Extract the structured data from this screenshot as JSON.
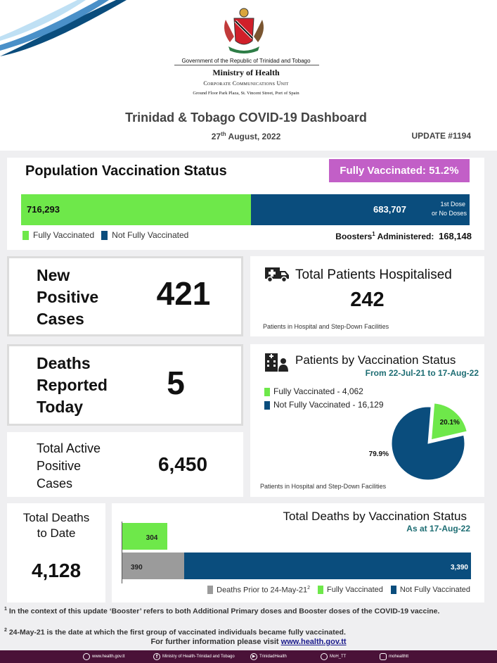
{
  "header": {
    "gov_line": "Government of the Republic of Trinidad and Tobago",
    "ministry": "Ministry of Health",
    "unit": "Corporate Communications Unit",
    "address": "Ground Floor Park Plaza, St. Vincent Street, Port of Spain",
    "title": "Trinidad & Tobago COVID-19 Dashboard",
    "date_day": "27",
    "date_sup": "th",
    "date_rest": "August, 2022",
    "update": "UPDATE #1194"
  },
  "vaccination": {
    "title": "Population Vaccination Status",
    "badge": "Fully Vaccinated: 51.2%",
    "fully_value": "716,293",
    "not_fully_value": "683,707",
    "not_fully_note_1": "1st Dose",
    "not_fully_note_2": "or No Doses",
    "fully_fraction": 0.512,
    "legend_fully": "Fully Vaccinated",
    "legend_not_fully": "Not Fully Vaccinated",
    "boosters_label": "Boosters",
    "boosters_sup": "1",
    "boosters_label_2": " Administered:",
    "boosters_value": "168,148"
  },
  "new_cases": {
    "label_1": "New",
    "label_2": "Positive",
    "label_3": "Cases",
    "value": "421"
  },
  "hospitalised": {
    "title": "Total Patients Hospitalised",
    "value": "242",
    "note": "Patients in Hospital and Step-Down Facilities"
  },
  "deaths_today": {
    "label_1": "Deaths",
    "label_2": "Reported",
    "label_3": "Today",
    "value": "5"
  },
  "active_cases": {
    "label_1": "Total Active",
    "label_2": "Positive",
    "label_3": "Cases",
    "value": "6,450"
  },
  "patients_vax": {
    "title": "Patients by Vaccination Status",
    "subtitle": "From 22-Jul-21 to 17-Aug-22",
    "legend_fully": "Fully Vaccinated - 4,062",
    "legend_not_fully": "Not Fully Vaccinated - 16,129",
    "note": "Patients in Hospital and Step-Down Facilities"
  },
  "total_deaths": {
    "label_1": "Total Deaths",
    "label_2": "to Date",
    "value": "4,128"
  },
  "deaths_vax": {
    "title": "Total Deaths by Vaccination Status",
    "subtitle": "As at 17-Aug-22",
    "legend_prior_text": "Deaths Prior to 24-May-21",
    "legend_prior_sup": "2",
    "legend_fully": "Fully Vaccinated",
    "legend_not_fully": "Not Fully Vaccinated"
  },
  "chart_data": [
    {
      "type": "pie",
      "labels": [
        "Fully Vaccinated",
        "Not Fully Vaccinated"
      ],
      "values": [
        20.1,
        79.9
      ],
      "value_labels": [
        "20.1%",
        "79.9%"
      ],
      "colors": [
        "#6ee84a",
        "#0a4d7d"
      ]
    },
    {
      "type": "bar",
      "orientation": "horizontal",
      "series": [
        {
          "name": "Fully Vaccinated",
          "values": [
            304
          ],
          "labels": [
            "304"
          ],
          "color": "#6ee84a"
        },
        {
          "name": "Deaths Prior to 24-May-21",
          "values": [
            390
          ],
          "labels": [
            "390"
          ],
          "color": "#9b9b9b"
        },
        {
          "name": "Not Fully Vaccinated",
          "values": [
            3390
          ],
          "labels": [
            "3,390"
          ],
          "color": "#0a4d7d"
        }
      ],
      "xlim": [
        0,
        3390
      ]
    }
  ],
  "footnotes": {
    "fn1_sup": "1",
    "fn1": " In the context of this update ‘Booster’ refers to both Additional Primary doses and Booster doses of the COVID-19 vaccine.",
    "fn2_sup": "2",
    "fn2": " 24-May-21 is the date at which the first group of vaccinated individuals became fully vaccinated.",
    "more_info": "For further information please visit ",
    "url": "www.health.gov.tt"
  },
  "footer": {
    "website": "www.health.gov.tt",
    "facebook": "Ministry of Health-Trinidad and Tobago",
    "youtube": "TrinidadHealth",
    "twitter": "MoH_TT",
    "instagram": "mohealthtt"
  },
  "colors": {
    "fully": "#6ee84a",
    "not_fully": "#0a4d7d",
    "prior": "#9b9b9b",
    "badge": "#c25fc7",
    "footer": "#4a1238"
  }
}
